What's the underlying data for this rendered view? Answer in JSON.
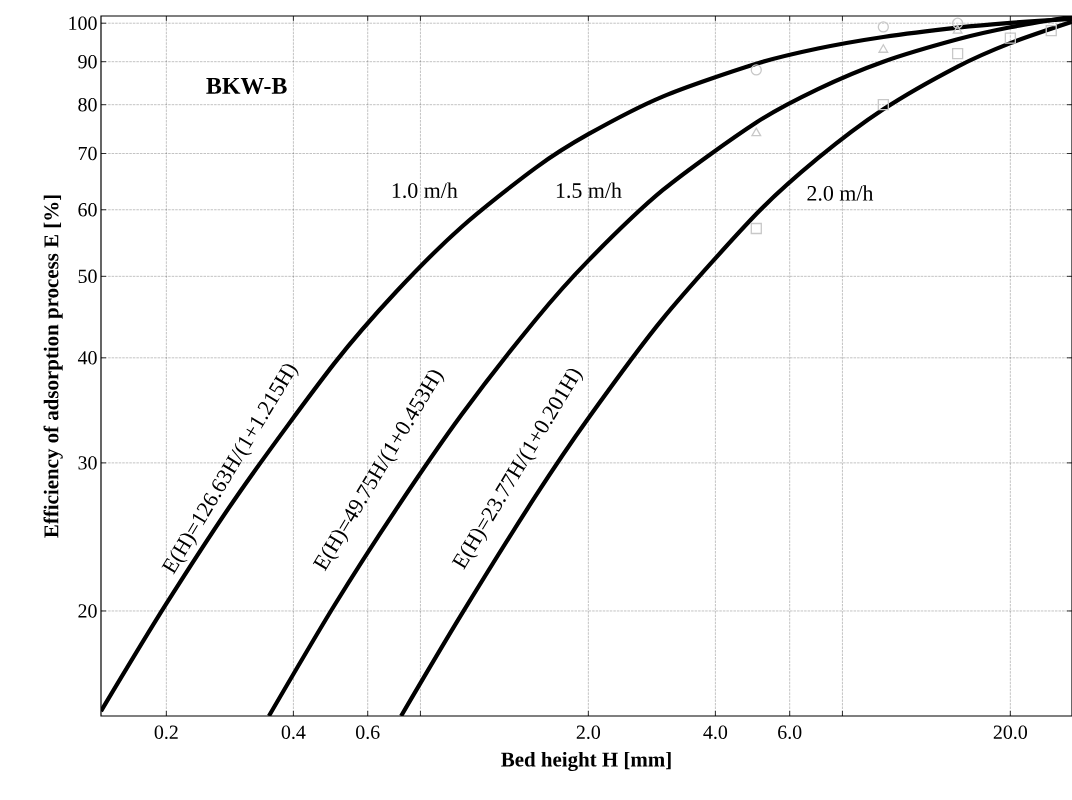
{
  "chart_data": {
    "type": "line",
    "title": "BKW-B",
    "xlabel": "Bed height H [mm]",
    "ylabel": "Efficiency of adsorption process E [%]",
    "log": "xy",
    "grid": true,
    "xlim": [
      0.14,
      28
    ],
    "ylim": [
      15,
      102
    ],
    "xticks": [
      0.2,
      0.4,
      0.6,
      {
        "value": 0.8,
        "label": null
      },
      {
        "value": 2,
        "label": "2.0"
      },
      {
        "value": 4,
        "label": "4.0"
      },
      {
        "value": 6,
        "label": "6.0"
      },
      {
        "value": 8,
        "label": null
      },
      {
        "value": 20,
        "label": "20.0"
      }
    ],
    "yticks": [
      20,
      30,
      40,
      50,
      60,
      70,
      80,
      90,
      100
    ],
    "series": [
      {
        "color": "#000000",
        "marker": "none",
        "x": [
          0.14,
          0.2,
          0.3,
          0.5,
          0.7,
          1,
          1.5,
          2,
          3,
          5,
          7,
          10,
          15,
          20,
          28
        ],
        "values": [
          15.2,
          20.4,
          27.8,
          39.4,
          47.9,
          57.2,
          67.3,
          73.8,
          81.8,
          89.5,
          93.3,
          96.3,
          98.8,
          100.1,
          101.2
        ]
      },
      {
        "color": "#000000",
        "marker": "none",
        "x": [
          0.35,
          0.5,
          0.7,
          1,
          1.5,
          2,
          3,
          5,
          7,
          10,
          15,
          20,
          28
        ],
        "values": [
          15.0,
          20.3,
          26.4,
          34.2,
          44.4,
          52.2,
          63.3,
          76.2,
          83.5,
          90.0,
          95.7,
          98.9,
          101.8
        ]
      },
      {
        "color": "#000000",
        "marker": "none",
        "x": [
          0.72,
          1,
          1.5,
          2,
          3,
          5,
          7,
          10,
          15,
          20,
          28
        ],
        "values": [
          15.0,
          19.8,
          27.4,
          33.9,
          44.5,
          59.3,
          69.1,
          79.0,
          88.8,
          94.7,
          100.4
        ]
      },
      {
        "type": "scatter",
        "color": "#c8c8c8",
        "marker": "circle",
        "x": [
          5,
          10,
          15
        ],
        "values": [
          88,
          99,
          100
        ]
      },
      {
        "type": "scatter",
        "color": "#c8c8c8",
        "marker": "triangle",
        "x": [
          5,
          10,
          15
        ],
        "values": [
          74,
          93,
          98
        ]
      },
      {
        "type": "scatter",
        "color": "#c8c8c8",
        "marker": "square",
        "x": [
          5,
          10,
          15,
          20,
          25
        ],
        "values": [
          57,
          80,
          92,
          96,
          98
        ]
      }
    ],
    "annotations": [
      "E(H)=126.63H/(1+1.215H)",
      "E(H)=49.75H/(1+0.453H)",
      "E(H)=23.77H/(1+0.201H)",
      "1.0 m/h",
      "1.5 m/h",
      "2.0 m/h"
    ]
  }
}
